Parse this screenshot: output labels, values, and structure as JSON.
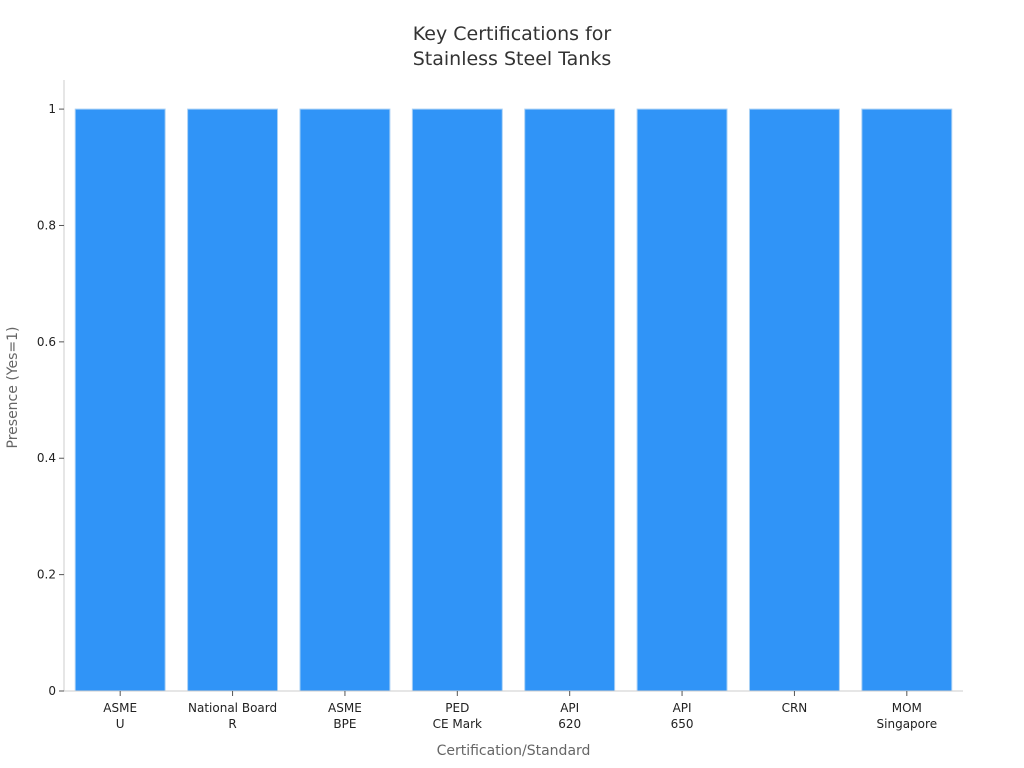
{
  "chart_data": {
    "type": "bar",
    "title": [
      "Key Certifications for",
      "Stainless Steel Tanks"
    ],
    "xlabel": "Certification/Standard",
    "ylabel": "Presence (Yes=1)",
    "categories": [
      [
        "ASME",
        "U"
      ],
      [
        "National Board",
        "R"
      ],
      [
        "ASME",
        "BPE"
      ],
      [
        "PED",
        "CE Mark"
      ],
      [
        "API",
        "620"
      ],
      [
        "API",
        "650"
      ],
      [
        "CRN"
      ],
      [
        "MOM",
        "Singapore"
      ]
    ],
    "values": [
      1,
      1,
      1,
      1,
      1,
      1,
      1,
      1
    ],
    "ylim": [
      0,
      1.05
    ],
    "yticks": [
      0,
      0.2,
      0.4,
      0.6,
      0.8,
      1
    ],
    "ytick_labels": [
      "0",
      "0.2",
      "0.4",
      "0.6",
      "0.8",
      "1"
    ],
    "grid": false,
    "colors": {
      "bar": "#3094f7",
      "bar_edge": "#a8d0f5",
      "axis": "#cccccc"
    }
  }
}
